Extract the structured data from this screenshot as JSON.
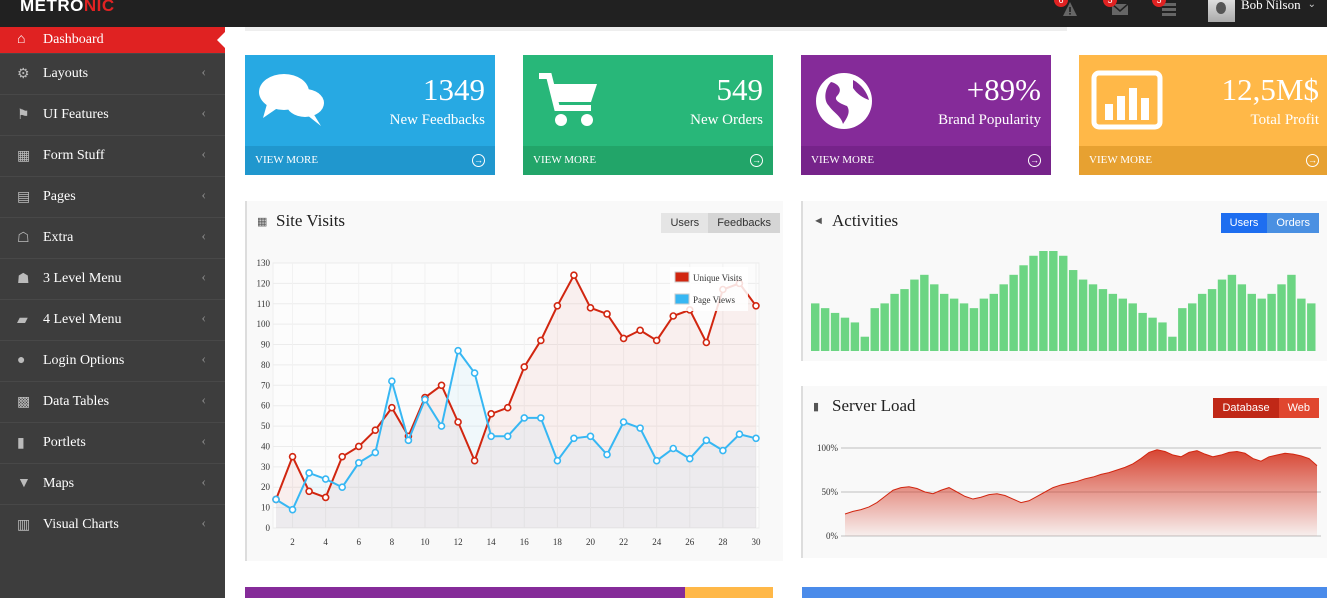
{
  "app": {
    "logo_part1": "METRO",
    "logo_part2": "NIC"
  },
  "topbar": {
    "notif_badge": "6",
    "inbox_badge": "5",
    "tasks_badge": "5",
    "user_name": "Bob Nilson"
  },
  "sidebar": {
    "items": [
      {
        "label": "Dashboard",
        "icon": "home-icon",
        "active": true
      },
      {
        "label": "Layouts",
        "icon": "cogs-icon"
      },
      {
        "label": "UI Features",
        "icon": "bookmark-icon"
      },
      {
        "label": "Form Stuff",
        "icon": "table-icon"
      },
      {
        "label": "Pages",
        "icon": "briefcase-icon"
      },
      {
        "label": "Extra",
        "icon": "gift-icon"
      },
      {
        "label": "3 Level Menu",
        "icon": "sitemap-icon"
      },
      {
        "label": "4 Level Menu",
        "icon": "folder-open-icon"
      },
      {
        "label": "Login Options",
        "icon": "user-icon"
      },
      {
        "label": "Data Tables",
        "icon": "th-icon"
      },
      {
        "label": "Portlets",
        "icon": "file-icon"
      },
      {
        "label": "Maps",
        "icon": "map-marker-icon"
      },
      {
        "label": "Visual Charts",
        "icon": "bar-chart-icon"
      }
    ]
  },
  "tiles": [
    {
      "value": "1349",
      "label": "New Feedbacks",
      "more": "VIEW MORE",
      "color": "#27a9e3",
      "more_color": "#2097ce",
      "icon": "comments-icon"
    },
    {
      "value": "549",
      "label": "New Orders",
      "more": "VIEW MORE",
      "color": "#28b779",
      "more_color": "#22a569",
      "icon": "shopping-cart-icon"
    },
    {
      "value": "+89%",
      "label": "Brand Popularity",
      "more": "VIEW MORE",
      "color": "#852b99",
      "more_color": "#76238a",
      "icon": "globe-icon"
    },
    {
      "value": "12,5M$",
      "label": "Total Profit",
      "more": "VIEW MORE",
      "color": "#ffb848",
      "more_color": "#e7a131",
      "icon": "bar-chart-icon"
    }
  ],
  "site_visits": {
    "title": "Site Visits",
    "buttons": [
      "Users",
      "Feedbacks"
    ]
  },
  "activities": {
    "title": "Activities",
    "buttons": [
      "Users",
      "Orders"
    ]
  },
  "server_load": {
    "title": "Server Load",
    "buttons": [
      "Database",
      "Web"
    ],
    "ticks": [
      "100%",
      "50%",
      "0%"
    ]
  },
  "chart_data": [
    {
      "type": "line",
      "title": "Site Visits",
      "ylim": [
        0,
        130
      ],
      "yticks": [
        0,
        10,
        20,
        30,
        40,
        50,
        60,
        70,
        80,
        90,
        100,
        110,
        120,
        130
      ],
      "xticks": [
        2,
        4,
        6,
        8,
        10,
        12,
        14,
        16,
        18,
        20,
        22,
        24,
        26,
        28,
        30
      ],
      "x": [
        1,
        2,
        3,
        4,
        5,
        6,
        7,
        8,
        9,
        10,
        11,
        12,
        13,
        14,
        15,
        16,
        17,
        18,
        19,
        20,
        21,
        22,
        23,
        24,
        25,
        26,
        27,
        28,
        29,
        30
      ],
      "series": [
        {
          "name": "Unique Visits",
          "color": "#d12610",
          "values": [
            14,
            35,
            18,
            15,
            35,
            40,
            48,
            59,
            45,
            64,
            70,
            52,
            33,
            56,
            59,
            79,
            92,
            109,
            124,
            108,
            105,
            93,
            97,
            92,
            104,
            107,
            91,
            117,
            120,
            109
          ]
        },
        {
          "name": "Page Views",
          "color": "#37b7f3",
          "values": [
            14,
            9,
            27,
            24,
            20,
            32,
            37,
            72,
            43,
            63,
            50,
            87,
            76,
            45,
            45,
            54,
            54,
            33,
            44,
            45,
            36,
            52,
            49,
            33,
            39,
            34,
            43,
            38,
            46,
            44
          ]
        }
      ]
    },
    {
      "type": "bar",
      "title": "Activities",
      "color": "#6cd583",
      "values": [
        10,
        9,
        8,
        7,
        6,
        3,
        9,
        10,
        12,
        13,
        15,
        16,
        14,
        12,
        11,
        10,
        9,
        11,
        12,
        14,
        16,
        18,
        20,
        21,
        21,
        20,
        17,
        15,
        14,
        13,
        12,
        11,
        10,
        8,
        7,
        6,
        3,
        9,
        10,
        12,
        13,
        15,
        16,
        14,
        12,
        11,
        12,
        14,
        16,
        11,
        10
      ]
    },
    {
      "type": "area",
      "title": "Server Load",
      "ylim": [
        0,
        100
      ],
      "color": "#d12610",
      "values": [
        25,
        28,
        30,
        33,
        38,
        45,
        52,
        55,
        56,
        54,
        50,
        48,
        52,
        55,
        50,
        45,
        42,
        44,
        47,
        48,
        46,
        42,
        38,
        40,
        45,
        50,
        55,
        58,
        60,
        62,
        65,
        67,
        70,
        72,
        75,
        78,
        82,
        88,
        95,
        98,
        96,
        92,
        90,
        95,
        97,
        93,
        90,
        92,
        95,
        96,
        94,
        88,
        85,
        90,
        92,
        94,
        93,
        91,
        88,
        80
      ]
    }
  ]
}
